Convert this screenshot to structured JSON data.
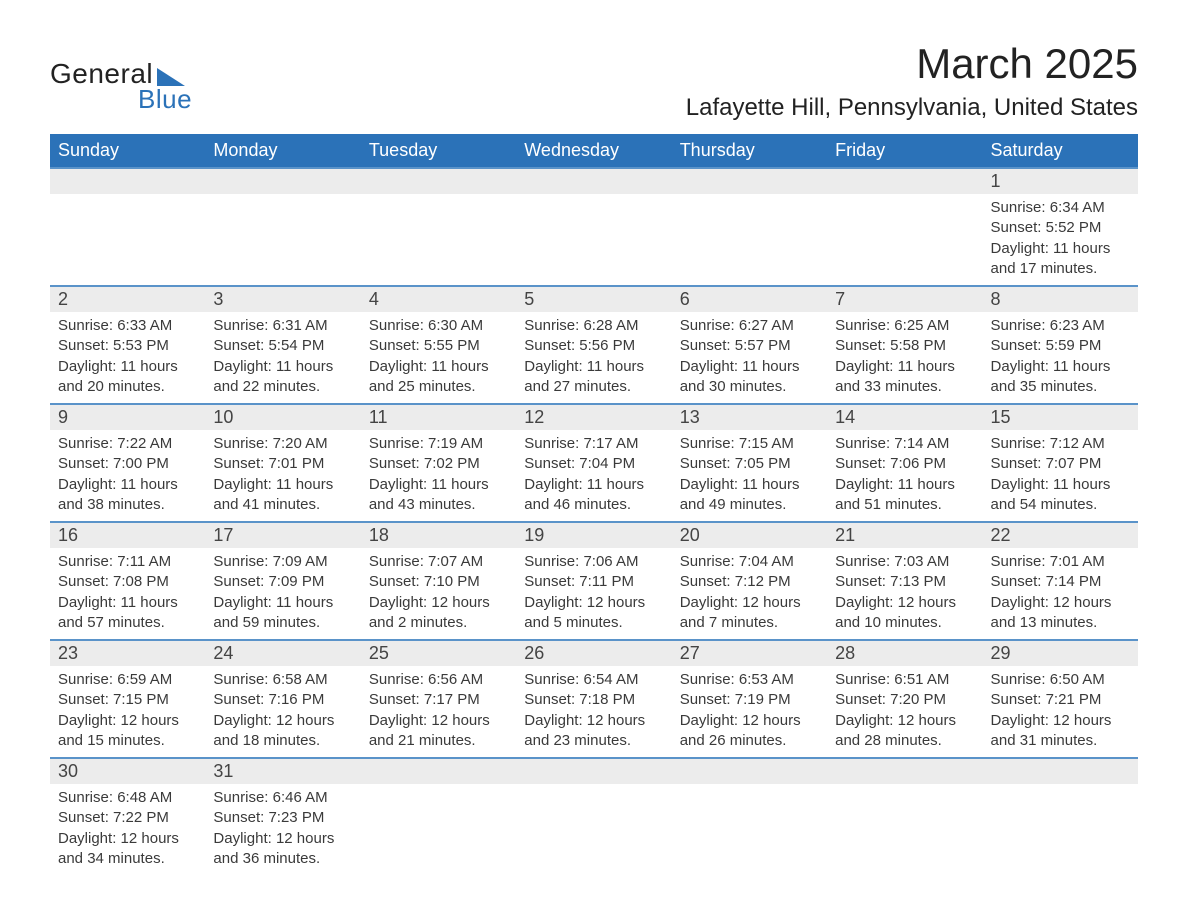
{
  "logo": {
    "word1": "General",
    "word2": "Blue"
  },
  "title": "March 2025",
  "location": "Lafayette Hill, Pennsylvania, United States",
  "colors": {
    "header_bg": "#2b72b8",
    "header_fg": "#ffffff",
    "row_divider": "#5a93c9",
    "daynum_bg": "#ececec",
    "text": "#333333"
  },
  "typography": {
    "title_fontsize": 42,
    "location_fontsize": 24,
    "header_fontsize": 18,
    "body_fontsize": 15
  },
  "weekdays": [
    "Sunday",
    "Monday",
    "Tuesday",
    "Wednesday",
    "Thursday",
    "Friday",
    "Saturday"
  ],
  "weeks": [
    [
      null,
      null,
      null,
      null,
      null,
      null,
      {
        "n": "1",
        "sunrise": "Sunrise: 6:34 AM",
        "sunset": "Sunset: 5:52 PM",
        "day1": "Daylight: 11 hours",
        "day2": "and 17 minutes."
      }
    ],
    [
      {
        "n": "2",
        "sunrise": "Sunrise: 6:33 AM",
        "sunset": "Sunset: 5:53 PM",
        "day1": "Daylight: 11 hours",
        "day2": "and 20 minutes."
      },
      {
        "n": "3",
        "sunrise": "Sunrise: 6:31 AM",
        "sunset": "Sunset: 5:54 PM",
        "day1": "Daylight: 11 hours",
        "day2": "and 22 minutes."
      },
      {
        "n": "4",
        "sunrise": "Sunrise: 6:30 AM",
        "sunset": "Sunset: 5:55 PM",
        "day1": "Daylight: 11 hours",
        "day2": "and 25 minutes."
      },
      {
        "n": "5",
        "sunrise": "Sunrise: 6:28 AM",
        "sunset": "Sunset: 5:56 PM",
        "day1": "Daylight: 11 hours",
        "day2": "and 27 minutes."
      },
      {
        "n": "6",
        "sunrise": "Sunrise: 6:27 AM",
        "sunset": "Sunset: 5:57 PM",
        "day1": "Daylight: 11 hours",
        "day2": "and 30 minutes."
      },
      {
        "n": "7",
        "sunrise": "Sunrise: 6:25 AM",
        "sunset": "Sunset: 5:58 PM",
        "day1": "Daylight: 11 hours",
        "day2": "and 33 minutes."
      },
      {
        "n": "8",
        "sunrise": "Sunrise: 6:23 AM",
        "sunset": "Sunset: 5:59 PM",
        "day1": "Daylight: 11 hours",
        "day2": "and 35 minutes."
      }
    ],
    [
      {
        "n": "9",
        "sunrise": "Sunrise: 7:22 AM",
        "sunset": "Sunset: 7:00 PM",
        "day1": "Daylight: 11 hours",
        "day2": "and 38 minutes."
      },
      {
        "n": "10",
        "sunrise": "Sunrise: 7:20 AM",
        "sunset": "Sunset: 7:01 PM",
        "day1": "Daylight: 11 hours",
        "day2": "and 41 minutes."
      },
      {
        "n": "11",
        "sunrise": "Sunrise: 7:19 AM",
        "sunset": "Sunset: 7:02 PM",
        "day1": "Daylight: 11 hours",
        "day2": "and 43 minutes."
      },
      {
        "n": "12",
        "sunrise": "Sunrise: 7:17 AM",
        "sunset": "Sunset: 7:04 PM",
        "day1": "Daylight: 11 hours",
        "day2": "and 46 minutes."
      },
      {
        "n": "13",
        "sunrise": "Sunrise: 7:15 AM",
        "sunset": "Sunset: 7:05 PM",
        "day1": "Daylight: 11 hours",
        "day2": "and 49 minutes."
      },
      {
        "n": "14",
        "sunrise": "Sunrise: 7:14 AM",
        "sunset": "Sunset: 7:06 PM",
        "day1": "Daylight: 11 hours",
        "day2": "and 51 minutes."
      },
      {
        "n": "15",
        "sunrise": "Sunrise: 7:12 AM",
        "sunset": "Sunset: 7:07 PM",
        "day1": "Daylight: 11 hours",
        "day2": "and 54 minutes."
      }
    ],
    [
      {
        "n": "16",
        "sunrise": "Sunrise: 7:11 AM",
        "sunset": "Sunset: 7:08 PM",
        "day1": "Daylight: 11 hours",
        "day2": "and 57 minutes."
      },
      {
        "n": "17",
        "sunrise": "Sunrise: 7:09 AM",
        "sunset": "Sunset: 7:09 PM",
        "day1": "Daylight: 11 hours",
        "day2": "and 59 minutes."
      },
      {
        "n": "18",
        "sunrise": "Sunrise: 7:07 AM",
        "sunset": "Sunset: 7:10 PM",
        "day1": "Daylight: 12 hours",
        "day2": "and 2 minutes."
      },
      {
        "n": "19",
        "sunrise": "Sunrise: 7:06 AM",
        "sunset": "Sunset: 7:11 PM",
        "day1": "Daylight: 12 hours",
        "day2": "and 5 minutes."
      },
      {
        "n": "20",
        "sunrise": "Sunrise: 7:04 AM",
        "sunset": "Sunset: 7:12 PM",
        "day1": "Daylight: 12 hours",
        "day2": "and 7 minutes."
      },
      {
        "n": "21",
        "sunrise": "Sunrise: 7:03 AM",
        "sunset": "Sunset: 7:13 PM",
        "day1": "Daylight: 12 hours",
        "day2": "and 10 minutes."
      },
      {
        "n": "22",
        "sunrise": "Sunrise: 7:01 AM",
        "sunset": "Sunset: 7:14 PM",
        "day1": "Daylight: 12 hours",
        "day2": "and 13 minutes."
      }
    ],
    [
      {
        "n": "23",
        "sunrise": "Sunrise: 6:59 AM",
        "sunset": "Sunset: 7:15 PM",
        "day1": "Daylight: 12 hours",
        "day2": "and 15 minutes."
      },
      {
        "n": "24",
        "sunrise": "Sunrise: 6:58 AM",
        "sunset": "Sunset: 7:16 PM",
        "day1": "Daylight: 12 hours",
        "day2": "and 18 minutes."
      },
      {
        "n": "25",
        "sunrise": "Sunrise: 6:56 AM",
        "sunset": "Sunset: 7:17 PM",
        "day1": "Daylight: 12 hours",
        "day2": "and 21 minutes."
      },
      {
        "n": "26",
        "sunrise": "Sunrise: 6:54 AM",
        "sunset": "Sunset: 7:18 PM",
        "day1": "Daylight: 12 hours",
        "day2": "and 23 minutes."
      },
      {
        "n": "27",
        "sunrise": "Sunrise: 6:53 AM",
        "sunset": "Sunset: 7:19 PM",
        "day1": "Daylight: 12 hours",
        "day2": "and 26 minutes."
      },
      {
        "n": "28",
        "sunrise": "Sunrise: 6:51 AM",
        "sunset": "Sunset: 7:20 PM",
        "day1": "Daylight: 12 hours",
        "day2": "and 28 minutes."
      },
      {
        "n": "29",
        "sunrise": "Sunrise: 6:50 AM",
        "sunset": "Sunset: 7:21 PM",
        "day1": "Daylight: 12 hours",
        "day2": "and 31 minutes."
      }
    ],
    [
      {
        "n": "30",
        "sunrise": "Sunrise: 6:48 AM",
        "sunset": "Sunset: 7:22 PM",
        "day1": "Daylight: 12 hours",
        "day2": "and 34 minutes."
      },
      {
        "n": "31",
        "sunrise": "Sunrise: 6:46 AM",
        "sunset": "Sunset: 7:23 PM",
        "day1": "Daylight: 12 hours",
        "day2": "and 36 minutes."
      },
      null,
      null,
      null,
      null,
      null
    ]
  ]
}
